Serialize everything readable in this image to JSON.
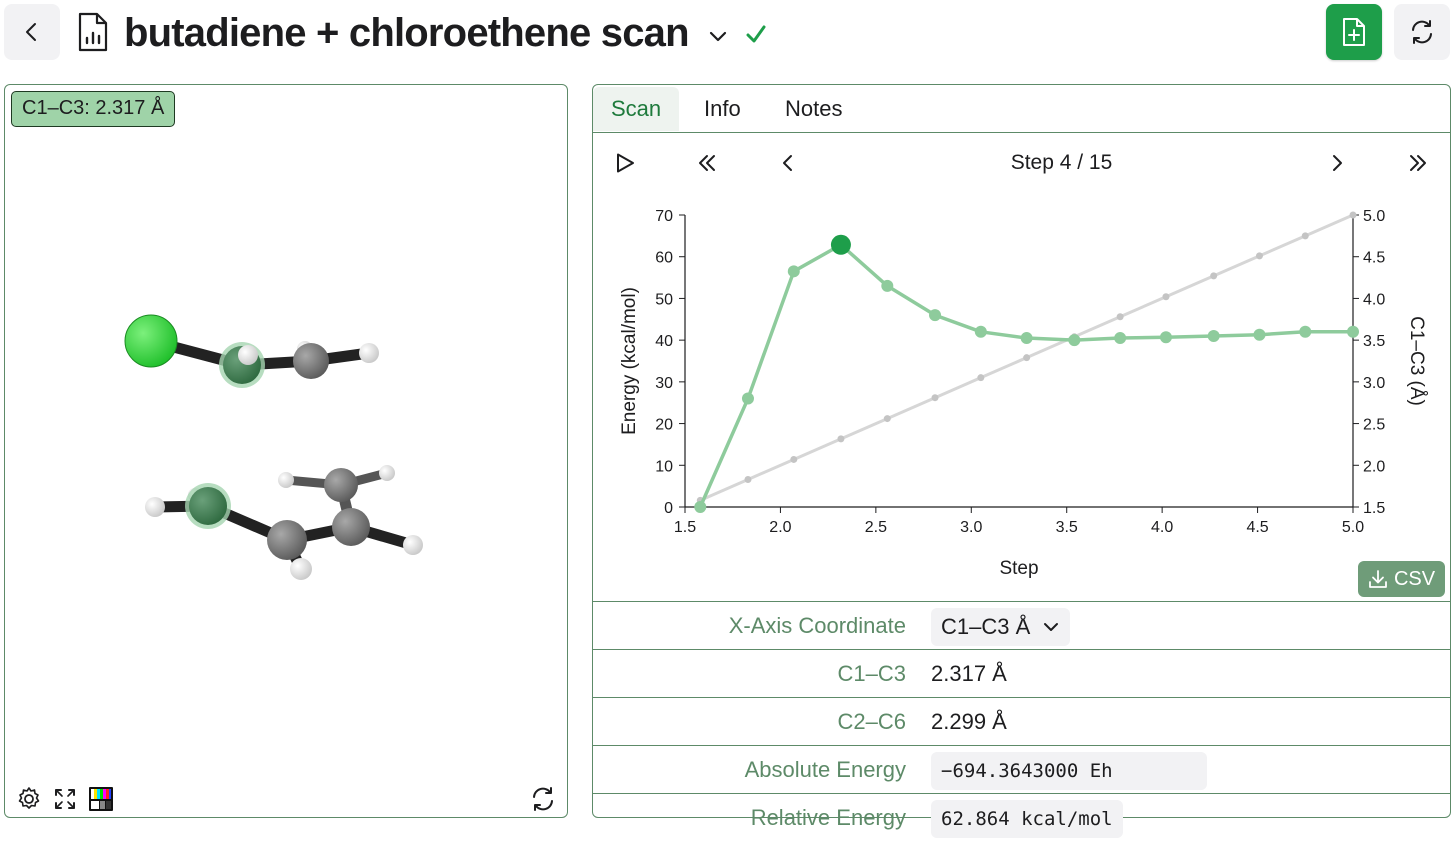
{
  "header": {
    "title": "butadiene + chloroethene scan",
    "back_icon": "chevron-left-icon",
    "doc_icon": "chart-document-icon",
    "saved_icon": "check-icon",
    "accent": "#1e9e4a"
  },
  "viewer": {
    "measurement": "C1–C3: 2.317 Å"
  },
  "tabs": [
    {
      "label": "Scan",
      "active": true
    },
    {
      "label": "Info",
      "active": false
    },
    {
      "label": "Notes",
      "active": false
    }
  ],
  "stepper": {
    "label": "Step 4 / 15",
    "current": 4,
    "total": 15
  },
  "chart_data": {
    "type": "line",
    "xlabel": "Step",
    "ylabel": "Energy (kcal/mol)",
    "y2label": "C1–C3 (Å)",
    "xlim": [
      1.5,
      5.0
    ],
    "ylim": [
      0,
      70
    ],
    "y2lim": [
      1.5,
      5.0
    ],
    "xticks": [
      "1.5",
      "2.0",
      "2.5",
      "3.0",
      "3.5",
      "4.0",
      "4.5",
      "5.0"
    ],
    "yticks": [
      "0",
      "10",
      "20",
      "30",
      "40",
      "50",
      "60",
      "70"
    ],
    "y2ticks": [
      "1.5",
      "2.0",
      "2.5",
      "3.0",
      "3.5",
      "4.0",
      "4.5",
      "5.0"
    ],
    "grid": false,
    "highlight_index": 3,
    "series": [
      {
        "axis": "left",
        "color": "#8ecb9c",
        "x": [
          1.58,
          1.83,
          2.07,
          2.317,
          2.56,
          2.81,
          3.05,
          3.29,
          3.54,
          3.78,
          4.02,
          4.27,
          4.51,
          4.75,
          5.0
        ],
        "values": [
          0,
          26,
          56.5,
          62.864,
          53,
          46,
          42,
          40.5,
          40,
          40.5,
          40.7,
          41,
          41.3,
          42,
          42
        ]
      },
      {
        "axis": "right",
        "color": "#d6d6d6",
        "x": [
          1.58,
          1.83,
          2.07,
          2.317,
          2.56,
          2.81,
          3.05,
          3.29,
          3.54,
          3.78,
          4.02,
          4.27,
          4.51,
          4.75,
          5.0
        ],
        "values": [
          1.58,
          1.83,
          2.07,
          2.317,
          2.56,
          2.81,
          3.05,
          3.29,
          3.54,
          3.78,
          4.02,
          4.27,
          4.51,
          4.75,
          5.0
        ]
      }
    ]
  },
  "csv": {
    "label": "CSV"
  },
  "properties": {
    "x_axis": {
      "label": "X-Axis Coordinate",
      "value": "C1–C3 Å"
    },
    "c1c3": {
      "label": "C1–C3",
      "value": "2.317 Å"
    },
    "c2c6": {
      "label": "C2–C6",
      "value": "2.299 Å"
    },
    "abs_energy": {
      "label": "Absolute Energy",
      "value": "−694.3643000 Eh"
    },
    "rel_energy": {
      "label": "Relative Energy",
      "value": "62.864 kcal/mol"
    }
  }
}
